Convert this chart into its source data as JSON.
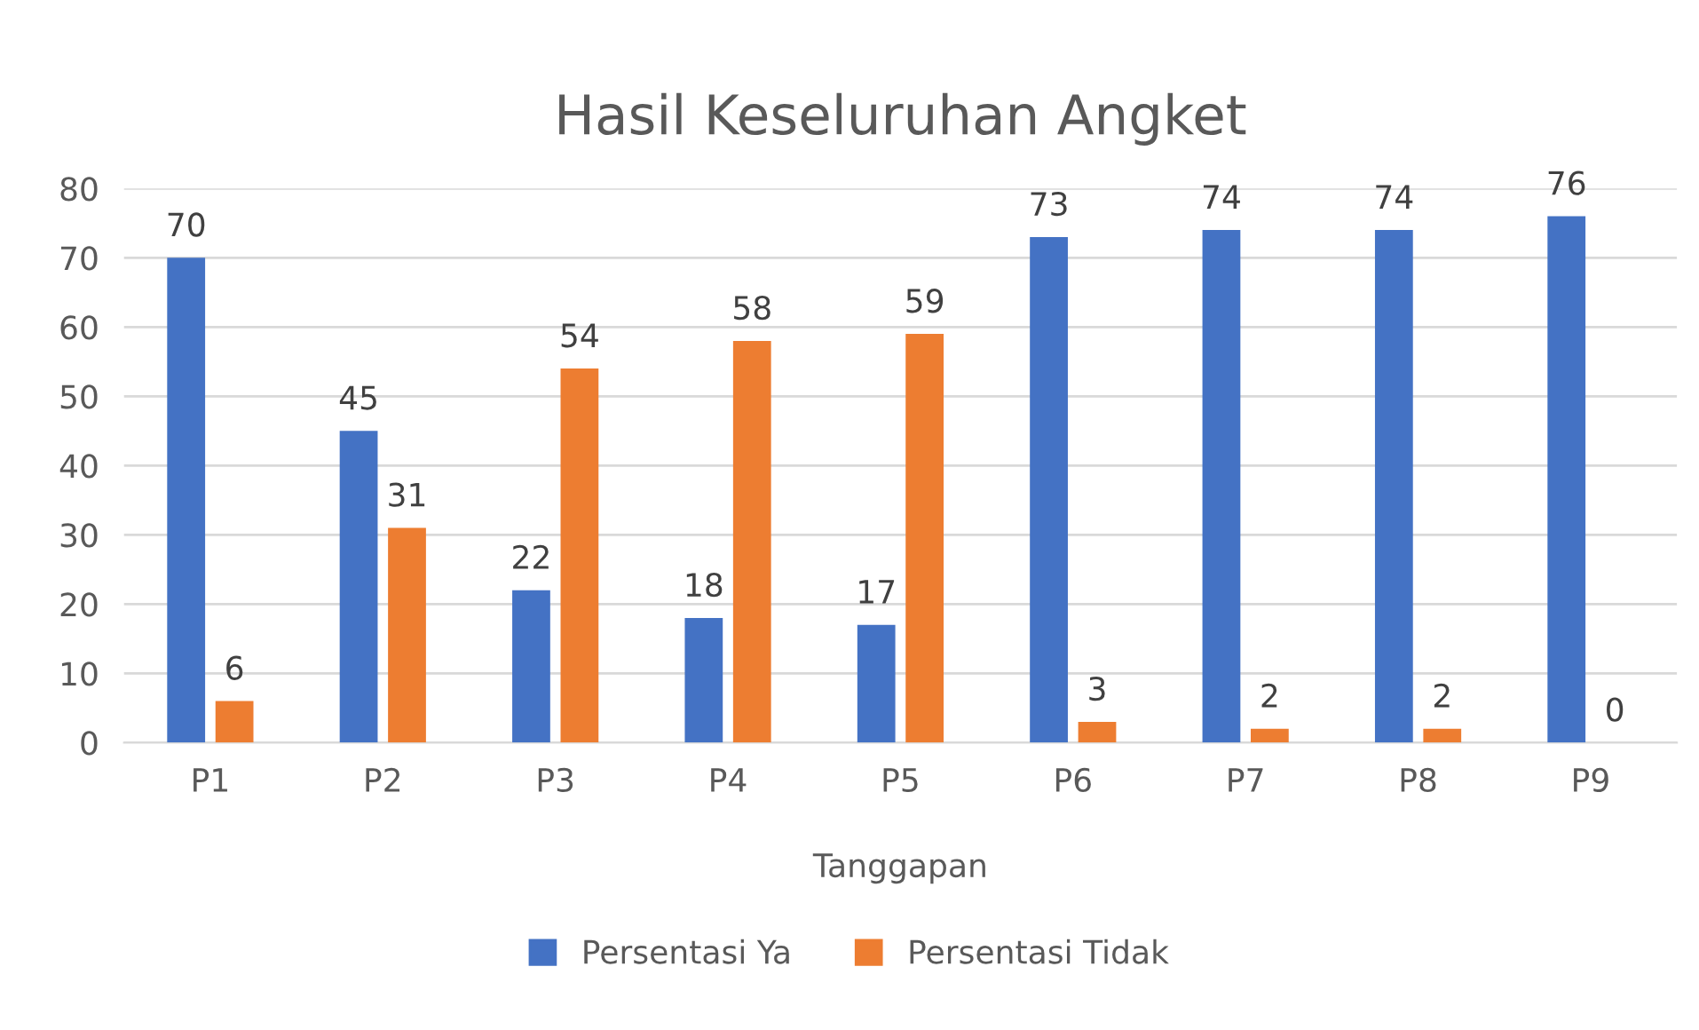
{
  "chart_data": {
    "type": "bar",
    "title": "Hasil Keseluruhan Angket",
    "xlabel": "Tanggapan",
    "categories": [
      "P1",
      "P2",
      "P3",
      "P4",
      "P5",
      "P6",
      "P7",
      "P8",
      "P9"
    ],
    "series": [
      {
        "name": "Persentasi Ya",
        "color": "#4472c4",
        "values": [
          70,
          45,
          22,
          18,
          17,
          73,
          74,
          74,
          76
        ]
      },
      {
        "name": "Persentasi Tidak",
        "color": "#ed7d31",
        "values": [
          6,
          31,
          54,
          58,
          59,
          3,
          2,
          2,
          0
        ]
      }
    ],
    "ylim": [
      0,
      80
    ],
    "yticks": [
      0,
      10,
      20,
      30,
      40,
      50,
      60,
      70,
      80
    ],
    "grid": "y",
    "legend": "bottom",
    "data_labels": true
  }
}
